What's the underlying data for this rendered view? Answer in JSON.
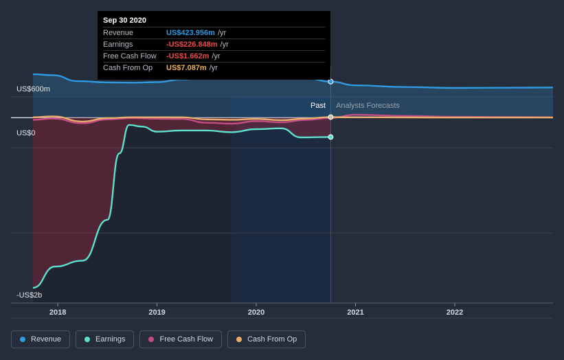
{
  "tooltip": {
    "date": "Sep 30 2020",
    "rows": [
      {
        "label": "Revenue",
        "value": "US$423.956m",
        "unit": "/yr",
        "color": "#2f9ae0"
      },
      {
        "label": "Earnings",
        "value": "-US$226.848m",
        "unit": "/yr",
        "color": "#ee4a4a"
      },
      {
        "label": "Free Cash Flow",
        "value": "-US$1.662m",
        "unit": "/yr",
        "color": "#ee4a4a"
      },
      {
        "label": "Cash From Op",
        "value": "US$7.087m",
        "unit": "/yr",
        "color": "#e9b25e"
      }
    ]
  },
  "labels": {
    "past": "Past",
    "forecast": "Analysts Forecasts"
  },
  "legend": [
    {
      "label": "Revenue",
      "color": "#2f9ae0"
    },
    {
      "label": "Earnings",
      "color": "#5de0cc"
    },
    {
      "label": "Free Cash Flow",
      "color": "#c44d86"
    },
    {
      "label": "Cash From Op",
      "color": "#e8ad6a"
    }
  ],
  "chart_data": {
    "type": "line",
    "y_tick_labels": [
      {
        "value": 600,
        "label": "US$600m"
      },
      {
        "value": 0,
        "label": "US$0"
      },
      {
        "value": -2000,
        "label": "-US$2b"
      }
    ],
    "x_tick_labels": [
      "2018",
      "2019",
      "2020",
      "2021",
      "2022"
    ],
    "x_ticks": [
      2018,
      2019,
      2020,
      2021,
      2022
    ],
    "xlim": [
      2017.75,
      2022.99
    ],
    "ylim": [
      -2000,
      600
    ],
    "past_end": 2020.75,
    "series": [
      {
        "name": "Revenue",
        "color": "#2f9ae0",
        "points": [
          [
            2017.75,
            510
          ],
          [
            2017.95,
            500
          ],
          [
            2018.2,
            430
          ],
          [
            2018.5,
            415
          ],
          [
            2018.75,
            412
          ],
          [
            2019.0,
            418
          ],
          [
            2019.25,
            450
          ],
          [
            2019.5,
            470
          ],
          [
            2019.75,
            488
          ],
          [
            2020.0,
            492
          ],
          [
            2020.25,
            488
          ],
          [
            2020.5,
            465
          ],
          [
            2020.75,
            424
          ]
        ],
        "forecast": [
          [
            2020.75,
            424
          ],
          [
            2021.0,
            380
          ],
          [
            2021.5,
            360
          ],
          [
            2022.0,
            350
          ],
          [
            2022.5,
            352
          ],
          [
            2022.99,
            355
          ]
        ]
      },
      {
        "name": "Earnings",
        "color": "#5de0cc",
        "points": [
          [
            2017.75,
            -2000
          ],
          [
            2017.97,
            -1750
          ],
          [
            2018.25,
            -1680
          ],
          [
            2018.5,
            -1200
          ],
          [
            2018.62,
            -420
          ],
          [
            2018.72,
            -85
          ],
          [
            2018.85,
            -105
          ],
          [
            2019.0,
            -165
          ],
          [
            2019.25,
            -150
          ],
          [
            2019.5,
            -150
          ],
          [
            2019.75,
            -170
          ],
          [
            2020.0,
            -135
          ],
          [
            2020.25,
            -125
          ],
          [
            2020.45,
            -232
          ],
          [
            2020.75,
            -227
          ]
        ],
        "forecast": []
      },
      {
        "name": "Free Cash Flow",
        "color": "#c44d86",
        "points": [
          [
            2017.75,
            -25
          ],
          [
            2017.95,
            -10
          ],
          [
            2018.25,
            -65
          ],
          [
            2018.5,
            -20
          ],
          [
            2018.75,
            -5
          ],
          [
            2019.0,
            -12
          ],
          [
            2019.25,
            -15
          ],
          [
            2019.5,
            -60
          ],
          [
            2019.75,
            -70
          ],
          [
            2020.0,
            -40
          ],
          [
            2020.25,
            -55
          ],
          [
            2020.5,
            -25
          ],
          [
            2020.75,
            -2
          ]
        ],
        "forecast": [
          [
            2020.75,
            -2
          ],
          [
            2021.0,
            35
          ],
          [
            2021.5,
            20
          ],
          [
            2022.0,
            10
          ],
          [
            2022.5,
            8
          ],
          [
            2022.99,
            5
          ]
        ]
      },
      {
        "name": "Cash From Op",
        "color": "#e8ad6a",
        "points": [
          [
            2017.75,
            5
          ],
          [
            2017.95,
            15
          ],
          [
            2018.25,
            -45
          ],
          [
            2018.5,
            -5
          ],
          [
            2018.75,
            5
          ],
          [
            2019.0,
            5
          ],
          [
            2019.25,
            5
          ],
          [
            2019.5,
            -20
          ],
          [
            2019.75,
            -25
          ],
          [
            2020.0,
            -15
          ],
          [
            2020.25,
            -30
          ],
          [
            2020.5,
            -10
          ],
          [
            2020.75,
            7
          ]
        ],
        "forecast": [
          [
            2020.75,
            7
          ],
          [
            2021.0,
            5
          ],
          [
            2021.5,
            3
          ],
          [
            2022.0,
            2
          ],
          [
            2022.5,
            2
          ],
          [
            2022.99,
            2
          ]
        ]
      }
    ]
  }
}
